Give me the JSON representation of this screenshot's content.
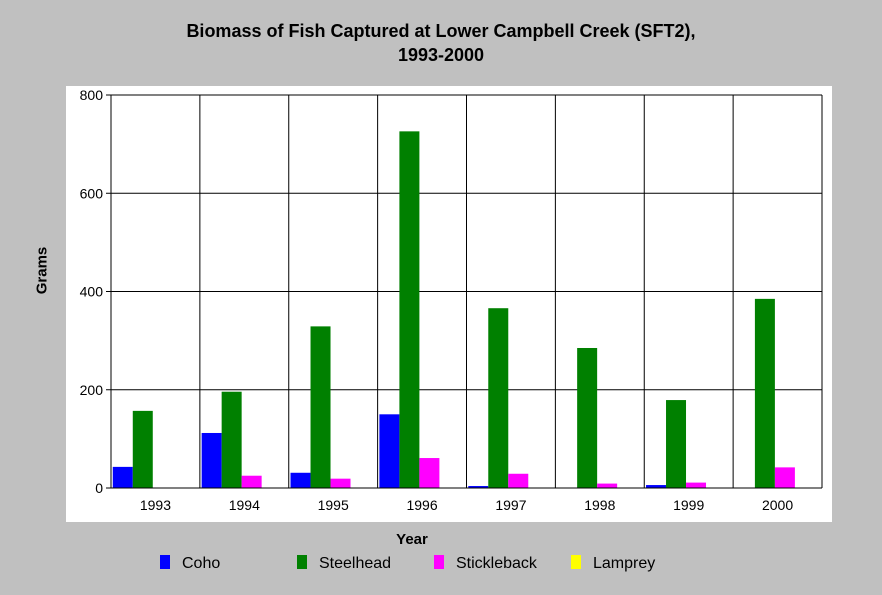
{
  "chart_data": {
    "type": "bar",
    "title": "Biomass of Fish Captured at Lower Campbell Creek (SFT2),",
    "subtitle": "1993-2000",
    "xlabel": "Year",
    "ylabel": "Grams",
    "ylim": [
      0,
      800
    ],
    "yticks": [
      "0",
      "200",
      "400",
      "600",
      "800"
    ],
    "grid": true,
    "legend_position": "bottom",
    "categories": [
      "1993",
      "1994",
      "1995",
      "1996",
      "1997",
      "1998",
      "1999",
      "2000"
    ],
    "series": [
      {
        "name": "Coho",
        "color": "#0000ff",
        "values": [
          43,
          112,
          31,
          150,
          4,
          0,
          6,
          0
        ]
      },
      {
        "name": "Steelhead",
        "color": "#008000",
        "values": [
          157,
          196,
          329,
          726,
          366,
          285,
          179,
          385
        ]
      },
      {
        "name": "Stickleback",
        "color": "#ff00ff",
        "values": [
          0,
          25,
          19,
          61,
          29,
          9,
          11,
          42
        ]
      },
      {
        "name": "Lamprey",
        "color": "#ffff00",
        "values": [
          0,
          0,
          0,
          0,
          0,
          0,
          0,
          0
        ]
      }
    ]
  }
}
